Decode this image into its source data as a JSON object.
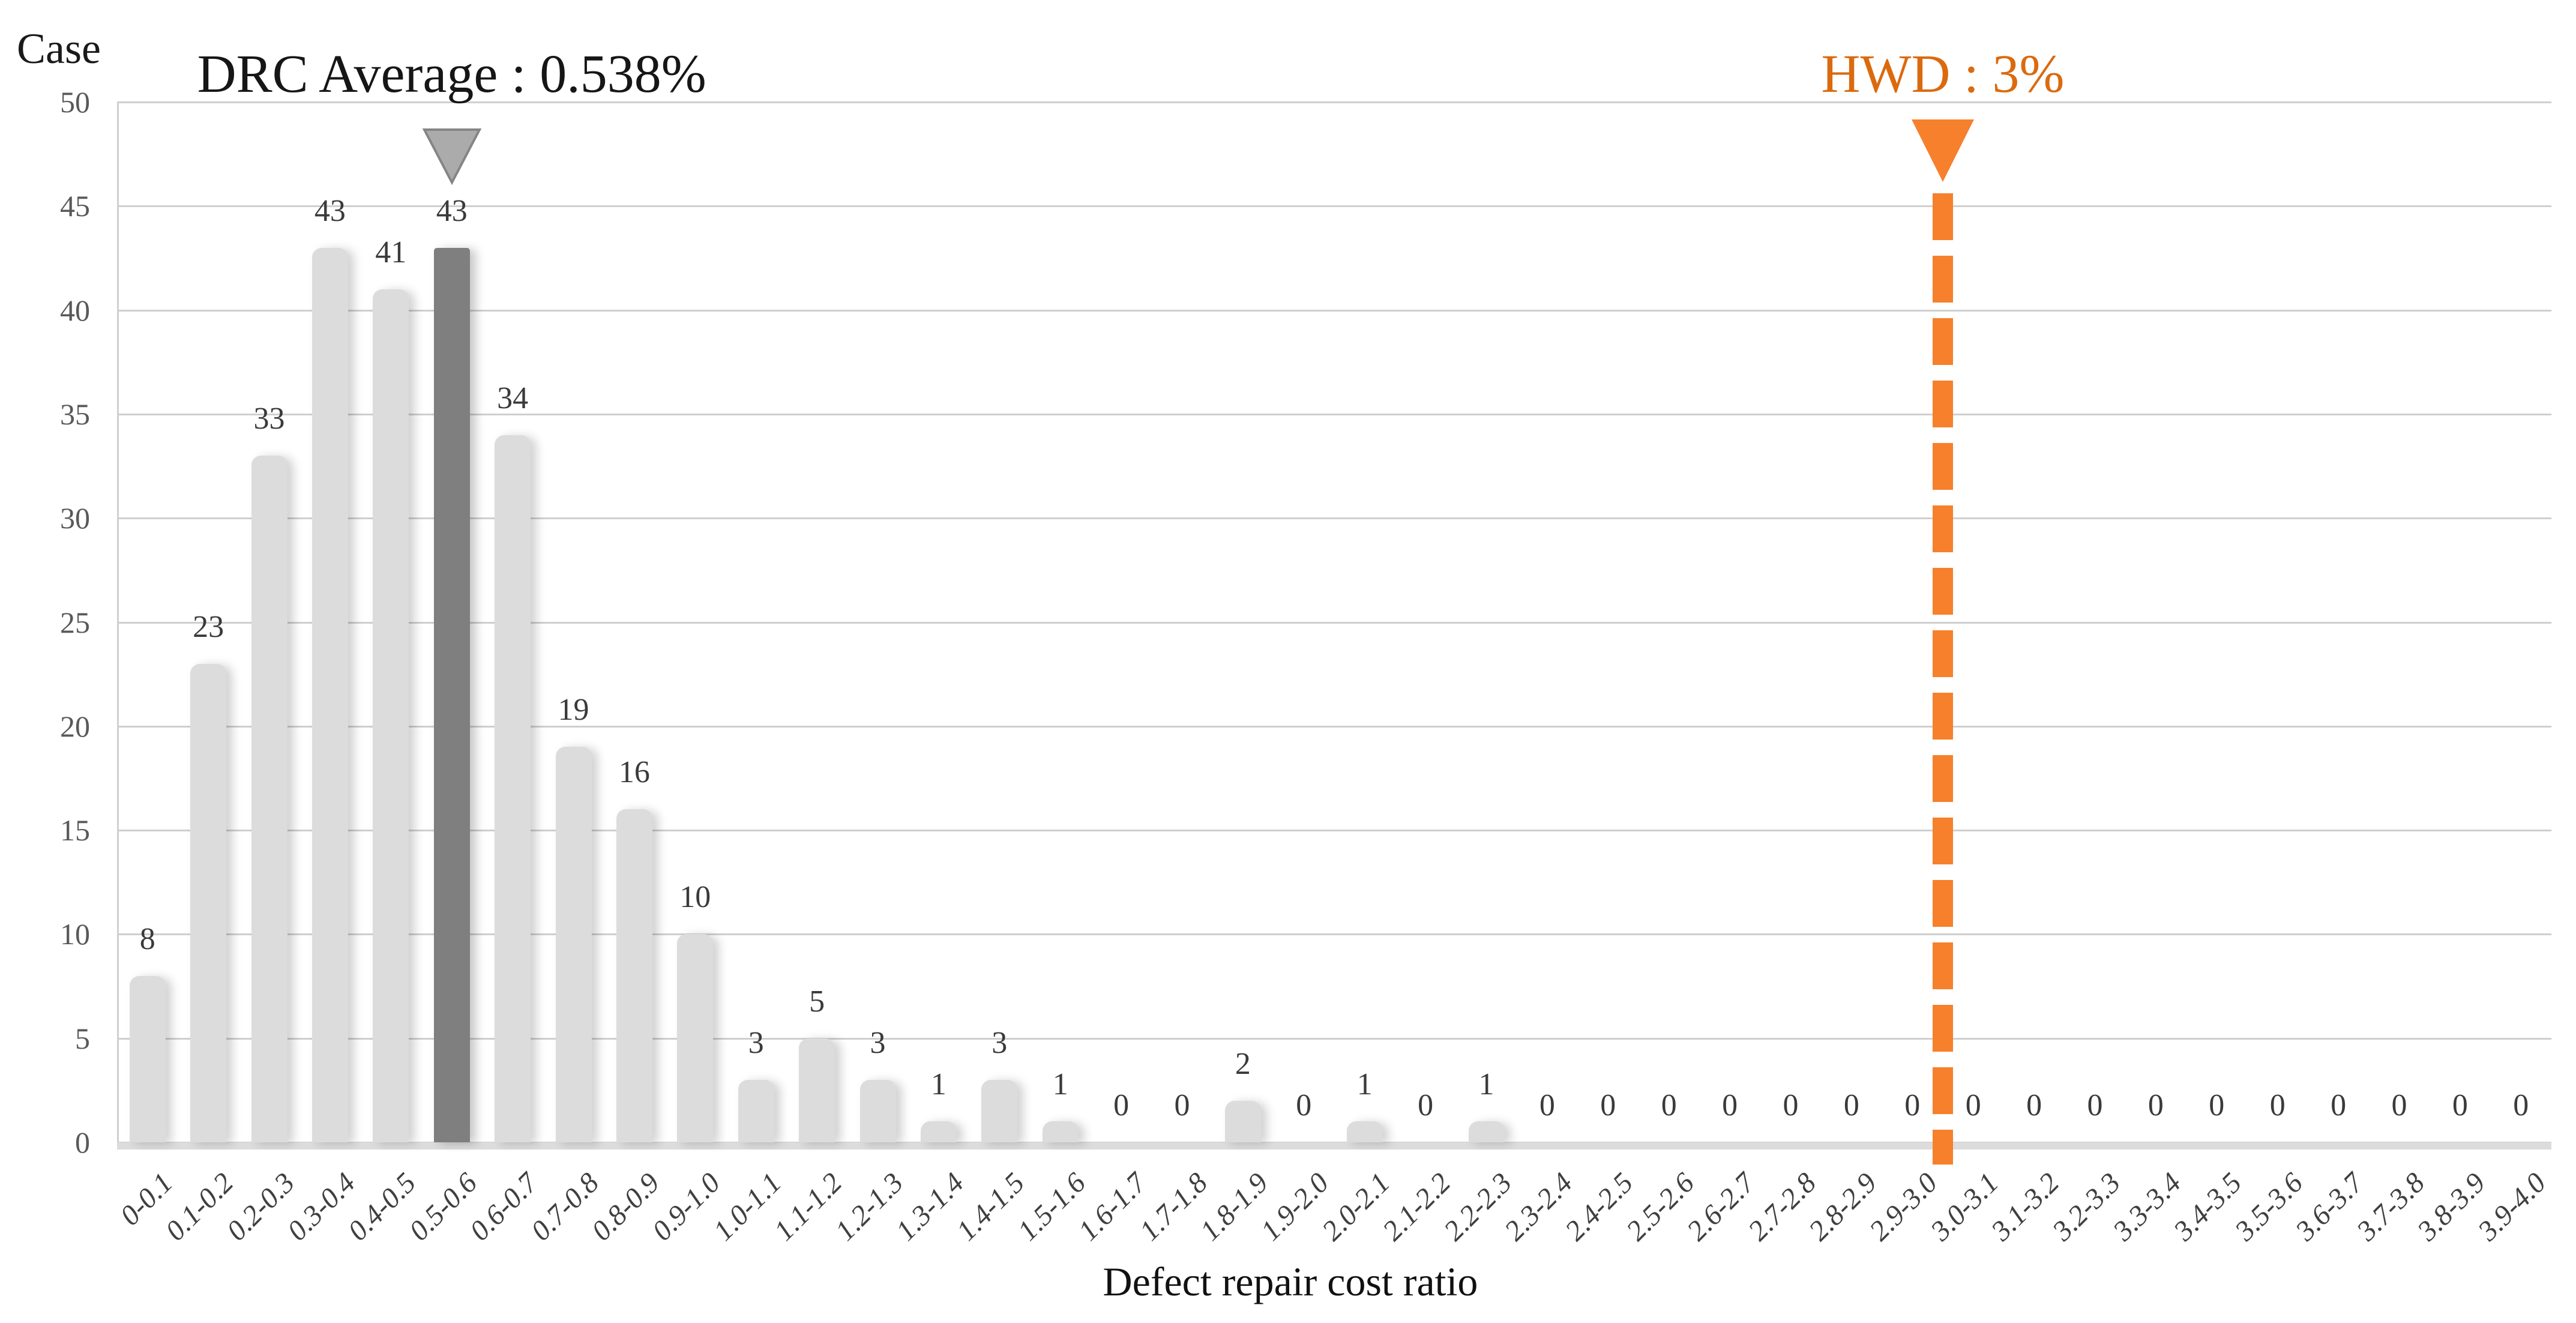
{
  "chart_data": {
    "type": "bar",
    "title": "",
    "ylabel": "Case",
    "xlabel": "Defect repair cost ratio",
    "categories": [
      "0-0.1",
      "0.1-0.2",
      "0.2-0.3",
      "0.3-0.4",
      "0.4-0.5",
      "0.5-0.6",
      "0.6-0.7",
      "0.7-0.8",
      "0.8-0.9",
      "0.9-1.0",
      "1.0-1.1",
      "1.1-1.2",
      "1.2-1.3",
      "1.3-1.4",
      "1.4-1.5",
      "1.5-1.6",
      "1.6-1.7",
      "1.7-1.8",
      "1.8-1.9",
      "1.9-2.0",
      "2.0-2.1",
      "2.1-2.2",
      "2.2-2.3",
      "2.3-2.4",
      "2.4-2.5",
      "2.5-2.6",
      "2.6-2.7",
      "2.7-2.8",
      "2.8-2.9",
      "2.9-3.0",
      "3.0-3.1",
      "3.1-3.2",
      "3.2-3.3",
      "3.3-3.4",
      "3.4-3.5",
      "3.5-3.6",
      "3.6-3.7",
      "3.7-3.8",
      "3.8-3.9",
      "3.9-4.0"
    ],
    "values": [
      8,
      23,
      33,
      43,
      41,
      43,
      34,
      19,
      16,
      10,
      3,
      5,
      3,
      1,
      3,
      1,
      0,
      0,
      2,
      0,
      1,
      0,
      1,
      0,
      0,
      0,
      0,
      0,
      0,
      0,
      0,
      0,
      0,
      0,
      0,
      0,
      0,
      0,
      0,
      0
    ],
    "ylim": [
      0,
      50
    ],
    "yticks": [
      0,
      5,
      10,
      15,
      20,
      25,
      30,
      35,
      40,
      45,
      50
    ],
    "grid": true,
    "legend": "none",
    "highlight_index": 5,
    "bar_color": "#dcdcdc",
    "highlight_color": "#7f7f7f",
    "annotations": {
      "drc": {
        "label": "DRC Average : 0.538%",
        "anchor_category_index": 5,
        "marker": "down-triangle",
        "marker_fill": "#ababab",
        "marker_stroke": "#858585",
        "text_color": "#161616"
      },
      "hwd": {
        "label": "HWD : 3%",
        "x_boundary_index": 30,
        "x_value": 3.0,
        "marker": "down-triangle",
        "line_style": "dashed",
        "color": "#f6802b",
        "text_color": "#db6a0e"
      }
    }
  }
}
